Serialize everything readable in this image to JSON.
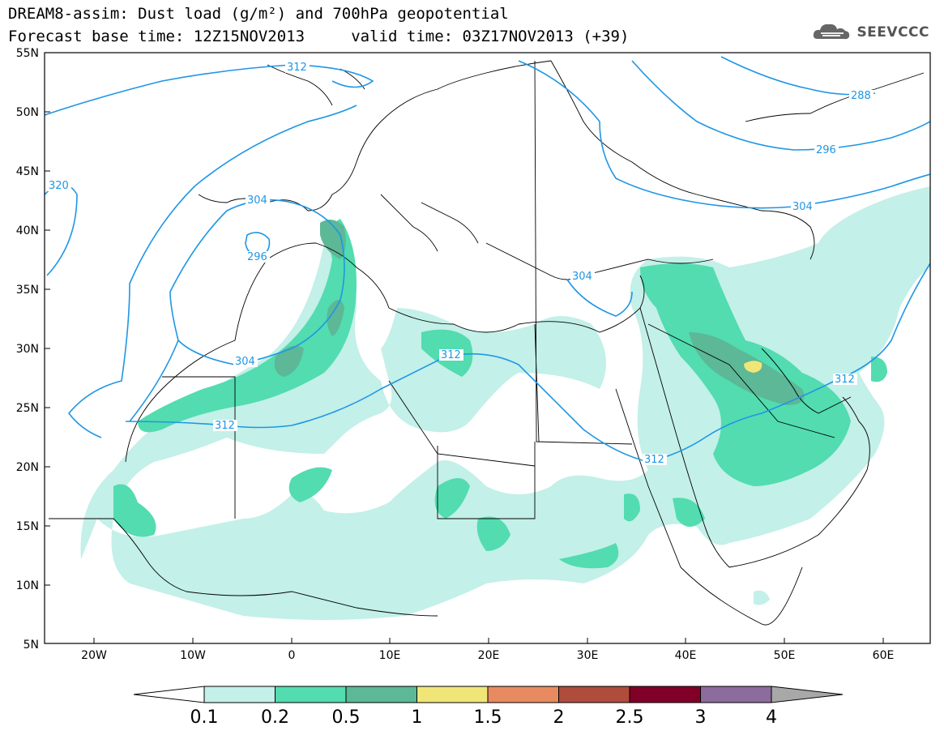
{
  "title_line1": "DREAM8-assim: Dust load (g/m²) and 700hPa geopotential",
  "title_line2": "Forecast base time: 12Z15NOV2013     valid time: 03Z17NOV2013 (+39)",
  "logo_text": "SEEVCCC",
  "map": {
    "lat_labels": [
      "55N",
      "50N",
      "45N",
      "40N",
      "35N",
      "30N",
      "25N",
      "20N",
      "15N",
      "10N",
      "5N"
    ],
    "lon_labels": [
      "20W",
      "10W",
      "0",
      "10E",
      "20E",
      "30E",
      "40E",
      "50E",
      "60E"
    ],
    "contour_labels": [
      "312",
      "320",
      "304",
      "296",
      "304",
      "312",
      "312",
      "304",
      "312",
      "288",
      "296",
      "304",
      "312"
    ]
  },
  "colorbar": {
    "ticks": [
      "0.1",
      "0.2",
      "0.5",
      "1",
      "1.5",
      "2",
      "2.5",
      "3",
      "4"
    ],
    "colors": [
      "#ffffff",
      "#c3f0e8",
      "#52dcb0",
      "#5cb896",
      "#f0e678",
      "#e88a60",
      "#b04c3c",
      "#800028",
      "#8c6c9c",
      "#a8a8a8"
    ]
  },
  "colors": {
    "dust_low": "#c3f0e8",
    "dust_mid": "#52dcb0",
    "dust_high": "#5cb896",
    "dust_peak": "#f0e678",
    "contour": "#1e96e6",
    "coast": "#000000"
  }
}
